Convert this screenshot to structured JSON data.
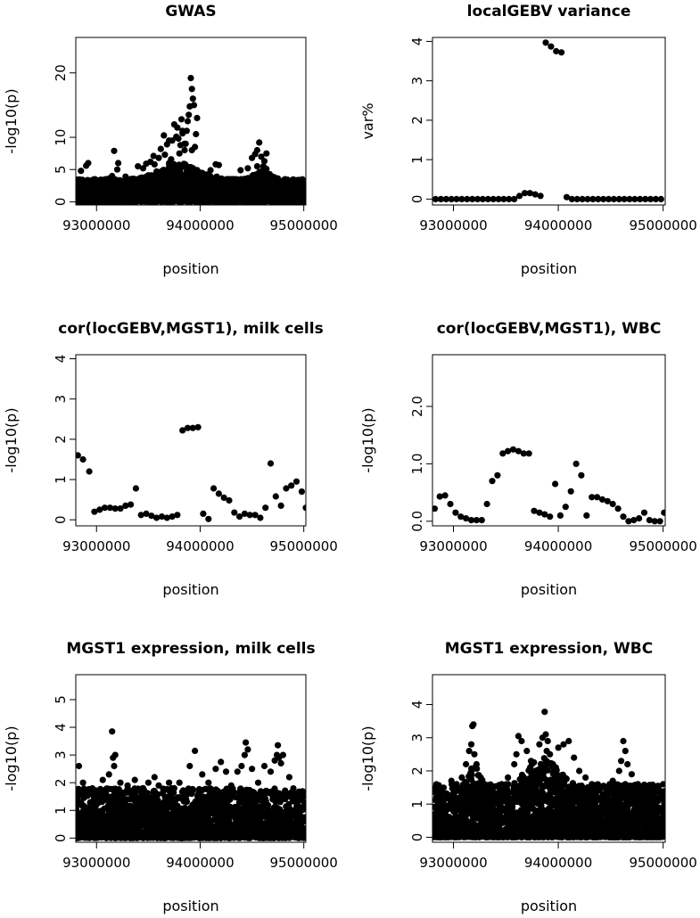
{
  "colors": {
    "ink": "#000000",
    "background": "#ffffff"
  },
  "chart_data": [
    {
      "type": "scatter",
      "id": "gwas",
      "title": "GWAS",
      "xlabel": "position",
      "ylabel": "-log10(p)",
      "xlim": [
        92800000,
        95020000
      ],
      "ylim": [
        -0.5,
        25.5
      ],
      "xticks": [
        {
          "value": 93000000,
          "label": "93000000"
        },
        {
          "value": 94000000,
          "label": "94000000"
        },
        {
          "value": 95000000,
          "label": "95000000"
        }
      ],
      "yticks": [
        {
          "value": 0,
          "label": "0"
        },
        {
          "value": 5,
          "label": "5"
        },
        {
          "value": 10,
          "label": "10"
        },
        {
          "value": 20,
          "label": "20"
        }
      ],
      "x": [
        92830000,
        92850000,
        92870000,
        92900000,
        92920000,
        92950000,
        92980000,
        93000000,
        93020000,
        93050000,
        93080000,
        93100000,
        93120000,
        93150000,
        93170000,
        93200000,
        93220000,
        93250000,
        93280000,
        93300000,
        93330000,
        93350000,
        93380000,
        93400000,
        93420000,
        93450000,
        93480000,
        93500000,
        93520000,
        93550000,
        93580000,
        93600000,
        93620000,
        93650000,
        93680000,
        93700000,
        93720000,
        93750000,
        93770000,
        93780000,
        93790000,
        93800000,
        93810000,
        93820000,
        93830000,
        93850000,
        93860000,
        93870000,
        93880000,
        93890000,
        93900000,
        93910000,
        93920000,
        93930000,
        93940000,
        93950000,
        93970000,
        94000000,
        94030000,
        94060000,
        94100000,
        94130000,
        94150000,
        94180000,
        94200000,
        94230000,
        94260000,
        94300000,
        94330000,
        94360000,
        94400000,
        94430000,
        94460000,
        94500000,
        94530000,
        94550000,
        94570000,
        94590000,
        94610000,
        94620000,
        94630000,
        94640000,
        94650000,
        94670000,
        94690000,
        94700000,
        94720000,
        94750000,
        94780000,
        94800000,
        94830000,
        94860000,
        94900000,
        94930000,
        94960000,
        95000000,
        95010000,
        93210000,
        93480000,
        93560000,
        93660000,
        93730000,
        94160000,
        94390000,
        92890000,
        93120000,
        93700000,
        93830000,
        93850000,
        93920000,
        93960000,
        94550000,
        94640000
      ],
      "y": [
        3.2,
        4.8,
        2.1,
        5.6,
        6.0,
        3.0,
        2.5,
        1.8,
        3.3,
        2.2,
        2.7,
        1.9,
        3.6,
        4.0,
        7.9,
        5.0,
        3.1,
        2.5,
        3.9,
        2.4,
        3.0,
        3.4,
        2.2,
        5.5,
        2.9,
        5.2,
        3.3,
        4.1,
        6.2,
        7.1,
        4.7,
        6.8,
        8.2,
        10.3,
        8.9,
        9.5,
        6.6,
        12.0,
        10.1,
        11.5,
        9.8,
        7.5,
        8.8,
        12.8,
        10.6,
        8.0,
        9.0,
        11.0,
        12.5,
        13.5,
        14.8,
        19.2,
        17.5,
        16.0,
        15.0,
        8.5,
        13.0,
        4.5,
        3.8,
        4.0,
        4.9,
        3.5,
        5.8,
        5.7,
        3.0,
        2.5,
        1.8,
        2.0,
        3.0,
        2.4,
        2.8,
        3.5,
        5.2,
        6.8,
        7.4,
        8.0,
        9.2,
        7.0,
        5.5,
        6.3,
        4.8,
        5.1,
        4.0,
        4.3,
        3.2,
        2.6,
        2.0,
        3.0,
        2.4,
        1.8,
        2.2,
        3.0,
        2.5,
        2.0,
        1.6,
        2.3,
        2.6,
        6.0,
        5.9,
        5.8,
        7.3,
        9.5,
        3.9,
        4.9,
        2.0,
        3.5,
        6.0,
        11.0,
        9.0,
        8.0,
        10.5,
        5.5,
        7.5
      ],
      "noise": {
        "count": 2400,
        "xmin": 92800000,
        "xmax": 95020000,
        "ymax": 3.5,
        "peaks": [
          {
            "x": 93800000,
            "amp": 2.5,
            "width": 250000
          },
          {
            "x": 94600000,
            "amp": 1.5,
            "width": 100000
          }
        ],
        "seed": 1
      }
    },
    {
      "type": "scatter",
      "id": "localgebv",
      "title": "localGEBV variance",
      "xlabel": "position",
      "ylabel": "var%",
      "xlim": [
        92800000,
        95020000
      ],
      "ylim": [
        -0.15,
        4.1
      ],
      "xticks": [
        {
          "value": 93000000,
          "label": "93000000"
        },
        {
          "value": 94000000,
          "label": "94000000"
        },
        {
          "value": 95000000,
          "label": "95000000"
        }
      ],
      "yticks": [
        {
          "value": 0,
          "label": "0"
        },
        {
          "value": 1,
          "label": "1"
        },
        {
          "value": 2,
          "label": "2"
        },
        {
          "value": 3,
          "label": "3"
        },
        {
          "value": 4,
          "label": "4"
        }
      ],
      "x": [
        92830000,
        92880000,
        92930000,
        92980000,
        93030000,
        93080000,
        93130000,
        93180000,
        93230000,
        93280000,
        93330000,
        93380000,
        93430000,
        93480000,
        93530000,
        93580000,
        93630000,
        93680000,
        93730000,
        93780000,
        93830000,
        93880000,
        93930000,
        93980000,
        94030000,
        94080000,
        94130000,
        94180000,
        94230000,
        94280000,
        94330000,
        94380000,
        94430000,
        94480000,
        94530000,
        94580000,
        94630000,
        94680000,
        94730000,
        94780000,
        94830000,
        94880000,
        94930000,
        94980000
      ],
      "y": [
        0,
        0,
        0,
        0,
        0,
        0,
        0,
        0,
        0,
        0,
        0,
        0,
        0,
        0,
        0,
        0,
        0.08,
        0.15,
        0.15,
        0.12,
        0.08,
        3.97,
        3.87,
        3.75,
        3.72,
        0.05,
        0,
        0,
        0,
        0,
        0,
        0,
        0,
        0,
        0,
        0,
        0,
        0,
        0,
        0,
        0,
        0,
        0,
        0
      ]
    },
    {
      "type": "scatter",
      "id": "cor-milk",
      "title": "cor(locGEBV,MGST1), milk cells",
      "xlabel": "position",
      "ylabel": "-log10(p)",
      "xlim": [
        92800000,
        95020000
      ],
      "ylim": [
        -0.15,
        4.1
      ],
      "xticks": [
        {
          "value": 93000000,
          "label": "93000000"
        },
        {
          "value": 94000000,
          "label": "94000000"
        },
        {
          "value": 95000000,
          "label": "95000000"
        }
      ],
      "yticks": [
        {
          "value": 0,
          "label": "0"
        },
        {
          "value": 1,
          "label": "1"
        },
        {
          "value": 2,
          "label": "2"
        },
        {
          "value": 3,
          "label": "3"
        },
        {
          "value": 4,
          "label": "4"
        }
      ],
      "x": [
        92820000,
        92870000,
        92930000,
        92980000,
        93030000,
        93080000,
        93130000,
        93180000,
        93230000,
        93280000,
        93330000,
        93380000,
        93430000,
        93480000,
        93530000,
        93580000,
        93630000,
        93680000,
        93730000,
        93780000,
        93830000,
        93880000,
        93930000,
        93980000,
        94030000,
        94080000,
        94130000,
        94180000,
        94230000,
        94280000,
        94330000,
        94380000,
        94430000,
        94480000,
        94530000,
        94580000,
        94630000,
        94680000,
        94730000,
        94780000,
        94830000,
        94880000,
        94930000,
        94980000,
        95020000
      ],
      "y": [
        1.6,
        1.5,
        1.2,
        0.2,
        0.25,
        0.3,
        0.3,
        0.28,
        0.28,
        0.35,
        0.38,
        0.78,
        0.12,
        0.15,
        0.1,
        0.05,
        0.08,
        0.05,
        0.08,
        0.12,
        2.22,
        2.28,
        2.28,
        2.3,
        0.15,
        0.02,
        0.78,
        0.65,
        0.55,
        0.48,
        0.18,
        0.08,
        0.15,
        0.12,
        0.12,
        0.05,
        0.3,
        1.4,
        0.58,
        0.35,
        0.78,
        0.85,
        0.95,
        0.7,
        0.3
      ]
    },
    {
      "type": "scatter",
      "id": "cor-wbc",
      "title": "cor(locGEBV,MGST1), WBC",
      "xlabel": "position",
      "ylabel": "-log10(p)",
      "xlim": [
        92800000,
        95020000
      ],
      "ylim": [
        -0.08,
        2.9
      ],
      "xticks": [
        {
          "value": 93000000,
          "label": "93000000"
        },
        {
          "value": 94000000,
          "label": "94000000"
        },
        {
          "value": 95000000,
          "label": "95000000"
        }
      ],
      "yticks": [
        {
          "value": 0,
          "label": "0.0"
        },
        {
          "value": 1,
          "label": "1.0"
        },
        {
          "value": 2,
          "label": "2.0"
        }
      ],
      "x": [
        92820000,
        92870000,
        92920000,
        92970000,
        93020000,
        93070000,
        93120000,
        93170000,
        93220000,
        93270000,
        93320000,
        93370000,
        93420000,
        93470000,
        93520000,
        93570000,
        93620000,
        93670000,
        93720000,
        93770000,
        93820000,
        93870000,
        93920000,
        93970000,
        94020000,
        94070000,
        94120000,
        94170000,
        94220000,
        94270000,
        94320000,
        94370000,
        94420000,
        94470000,
        94520000,
        94570000,
        94620000,
        94670000,
        94720000,
        94770000,
        94820000,
        94870000,
        94920000,
        94970000,
        95010000
      ],
      "y": [
        0.22,
        0.43,
        0.45,
        0.3,
        0.15,
        0.08,
        0.05,
        0.02,
        0.02,
        0.02,
        0.3,
        0.7,
        0.8,
        1.18,
        1.22,
        1.25,
        1.22,
        1.18,
        1.18,
        0.18,
        0.15,
        0.12,
        0.08,
        0.65,
        0.1,
        0.25,
        0.52,
        1.0,
        0.8,
        0.1,
        0.42,
        0.42,
        0.38,
        0.35,
        0.3,
        0.22,
        0.08,
        0.0,
        0.02,
        0.05,
        0.15,
        0.02,
        0.0,
        0.0,
        0.15
      ]
    },
    {
      "type": "scatter",
      "id": "mgst1-milk",
      "title": "MGST1 expression, milk cells",
      "xlabel": "position",
      "ylabel": "-log10(p)",
      "xlim": [
        92800000,
        95020000
      ],
      "ylim": [
        -0.15,
        5.9
      ],
      "xticks": [
        {
          "value": 93000000,
          "label": "93000000"
        },
        {
          "value": 94000000,
          "label": "94000000"
        },
        {
          "value": 95000000,
          "label": "95000000"
        }
      ],
      "yticks": [
        {
          "value": 0,
          "label": "0"
        },
        {
          "value": 1,
          "label": "1"
        },
        {
          "value": 2,
          "label": "2"
        },
        {
          "value": 3,
          "label": "3"
        },
        {
          "value": 4,
          "label": "4"
        },
        {
          "value": 5,
          "label": "5"
        }
      ],
      "x": [
        92830000,
        92870000,
        92930000,
        93000000,
        93060000,
        93120000,
        93150000,
        93160000,
        93170000,
        93180000,
        93230000,
        93300000,
        93370000,
        93450000,
        93500000,
        93560000,
        93600000,
        93660000,
        93700000,
        93750000,
        93800000,
        93850000,
        93900000,
        93950000,
        94020000,
        94080000,
        94150000,
        94200000,
        94250000,
        94300000,
        94360000,
        94400000,
        94430000,
        94440000,
        94460000,
        94500000,
        94560000,
        94620000,
        94680000,
        94720000,
        94740000,
        94750000,
        94760000,
        94780000,
        94800000,
        94860000,
        94920000,
        94980000
      ],
      "y": [
        2.6,
        2.0,
        1.7,
        1.5,
        2.1,
        2.3,
        3.85,
        2.9,
        2.6,
        3.0,
        2.0,
        1.9,
        2.1,
        1.8,
        2.0,
        2.2,
        1.9,
        1.5,
        2.0,
        1.8,
        2.0,
        1.6,
        2.6,
        3.15,
        2.3,
        2.0,
        2.5,
        2.75,
        2.4,
        1.9,
        2.4,
        2.6,
        3.0,
        3.45,
        3.2,
        2.5,
        2.0,
        2.6,
        2.4,
        2.8,
        3.0,
        3.35,
        2.9,
        2.7,
        3.0,
        2.2,
        1.6,
        1.4
      ],
      "noise": {
        "count": 2000,
        "xmin": 92800000,
        "xmax": 95020000,
        "ymax": 1.8,
        "peaks": [],
        "seed": 7
      }
    },
    {
      "type": "scatter",
      "id": "mgst1-wbc",
      "title": "MGST1 expression, WBC",
      "xlabel": "position",
      "ylabel": "-log10(p)",
      "xlim": [
        92800000,
        95020000
      ],
      "ylim": [
        -0.15,
        4.9
      ],
      "xticks": [
        {
          "value": 93000000,
          "label": "93000000"
        },
        {
          "value": 94000000,
          "label": "94000000"
        },
        {
          "value": 95000000,
          "label": "95000000"
        }
      ],
      "yticks": [
        {
          "value": 0,
          "label": "0"
        },
        {
          "value": 1,
          "label": "1"
        },
        {
          "value": 2,
          "label": "2"
        },
        {
          "value": 3,
          "label": "3"
        },
        {
          "value": 4,
          "label": "4"
        }
      ],
      "x": [
        92830000,
        92900000,
        92980000,
        93030000,
        93080000,
        93120000,
        93150000,
        93170000,
        93180000,
        93190000,
        93200000,
        93220000,
        93260000,
        93320000,
        93400000,
        93460000,
        93520000,
        93580000,
        93600000,
        93620000,
        93650000,
        93700000,
        93740000,
        93780000,
        93820000,
        93850000,
        93870000,
        93880000,
        93890000,
        93900000,
        93920000,
        93950000,
        94000000,
        94050000,
        94100000,
        94150000,
        94200000,
        94260000,
        94320000,
        94400000,
        94460000,
        94520000,
        94580000,
        94600000,
        94620000,
        94640000,
        94660000,
        94700000,
        94760000,
        94820000,
        94880000,
        94950000,
        95000000
      ],
      "y": [
        1.4,
        1.2,
        1.7,
        1.6,
        1.8,
        2.2,
        2.6,
        2.8,
        3.35,
        3.4,
        2.5,
        2.2,
        1.8,
        1.5,
        1.3,
        1.6,
        1.8,
        2.2,
        2.5,
        3.05,
        2.9,
        2.6,
        2.3,
        2.0,
        2.8,
        3.0,
        3.78,
        3.1,
        2.6,
        2.9,
        2.5,
        2.2,
        2.7,
        2.8,
        2.9,
        2.4,
        2.0,
        1.8,
        1.6,
        1.5,
        1.4,
        1.7,
        2.0,
        2.3,
        2.9,
        2.6,
        2.2,
        1.9,
        1.6,
        1.3,
        1.2,
        1.55,
        1.6
      ],
      "noise": {
        "count": 2600,
        "xmin": 92800000,
        "xmax": 95020000,
        "ymax": 1.6,
        "peaks": [
          {
            "x": 93200000,
            "amp": 0.6,
            "width": 60000
          },
          {
            "x": 93850000,
            "amp": 0.8,
            "width": 200000
          }
        ],
        "seed": 13
      }
    }
  ]
}
